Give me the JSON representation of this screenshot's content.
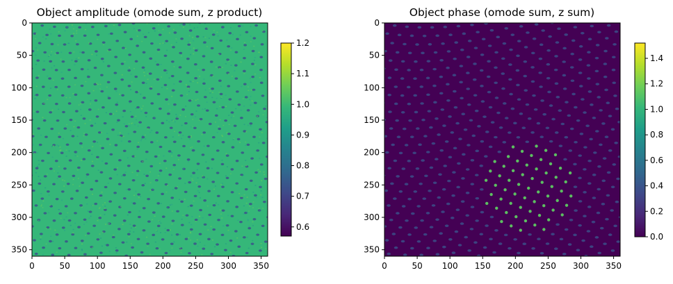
{
  "chart_data": [
    {
      "type": "heatmap",
      "title": "Object amplitude (omode sum, z product)",
      "xlabel": "",
      "ylabel": "",
      "xlim": [
        0,
        360
      ],
      "ylim": [
        360,
        0
      ],
      "xticks": [
        0,
        50,
        100,
        150,
        200,
        250,
        300,
        350
      ],
      "yticks": [
        0,
        50,
        100,
        150,
        200,
        250,
        300,
        350
      ],
      "colormap": "viridis",
      "colorbar": {
        "min": 0.57,
        "max": 1.2,
        "ticks": [
          "0.6",
          "0.7",
          "0.8",
          "0.9",
          "1.0",
          "1.1",
          "1.2"
        ]
      },
      "background_color": "#35b779",
      "feature_color": "#3b528b",
      "pattern": "speckled field with a periodic lattice of dark dots forming moire-like rotated grids"
    },
    {
      "type": "heatmap",
      "title": "Object phase (omode sum, z sum)",
      "xlabel": "",
      "ylabel": "",
      "xlim": [
        0,
        360
      ],
      "ylim": [
        360,
        0
      ],
      "xticks": [
        0,
        50,
        100,
        150,
        200,
        250,
        300,
        350
      ],
      "yticks": [
        0,
        50,
        100,
        150,
        200,
        250,
        300,
        350
      ],
      "colormap": "viridis",
      "colorbar": {
        "min": 0.0,
        "max": 1.52,
        "ticks": [
          "0.0",
          "0.2",
          "0.4",
          "0.6",
          "0.8",
          "1.0",
          "1.2",
          "1.4"
        ]
      },
      "background_color": "#440154",
      "feature_color": "#3b528b",
      "highlight_color": "#5ec962",
      "pattern": "dark field with periodic lattice of bright dots, brightest near center-bottom around (220, 260)"
    }
  ],
  "colors": {
    "viridis_stops": [
      "#440154",
      "#482878",
      "#3e4989",
      "#31688e",
      "#26828e",
      "#1f9e89",
      "#35b779",
      "#6ece58",
      "#b5de2b",
      "#fde725"
    ]
  }
}
